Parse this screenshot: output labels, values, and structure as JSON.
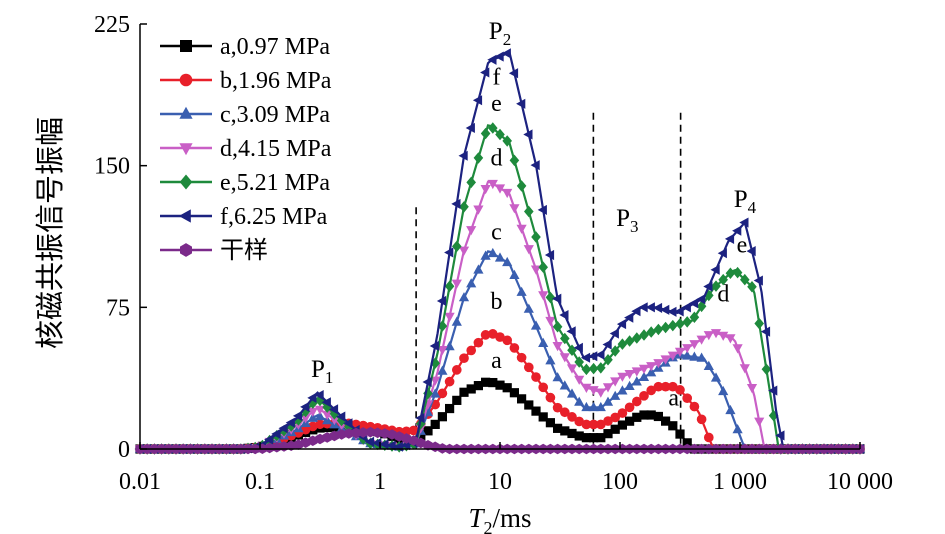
{
  "chart_data": {
    "type": "line",
    "xscale": "log",
    "xlim": [
      0.01,
      10000
    ],
    "ylim": [
      0,
      225
    ],
    "x_ticks": [
      "0.01",
      "0.1",
      "1",
      "10",
      "100",
      "1 000",
      "10 000"
    ],
    "y_ticks": [
      "0",
      "75",
      "150",
      "225"
    ],
    "xlabel": {
      "symbol": "T",
      "sub": "2",
      "unit": "/ms"
    },
    "ylabel": "核磁共振信号振幅",
    "legend_position": "top-left",
    "dividers_x": [
      2,
      60,
      320
    ],
    "peak_labels": [
      {
        "base": "P",
        "sub": "1",
        "x": 0.33,
        "y": 38
      },
      {
        "base": "P",
        "sub": "2",
        "x": 10,
        "y": 217
      },
      {
        "base": "P",
        "sub": "3",
        "x": 115,
        "y": 118
      },
      {
        "base": "P",
        "sub": "4",
        "x": 1100,
        "y": 128
      }
    ],
    "curve_labels": [
      {
        "text": "a",
        "x": 9,
        "y": 43
      },
      {
        "text": "b",
        "x": 9,
        "y": 74
      },
      {
        "text": "c",
        "x": 9,
        "y": 111
      },
      {
        "text": "d",
        "x": 9,
        "y": 150
      },
      {
        "text": "e",
        "x": 9,
        "y": 179
      },
      {
        "text": "f",
        "x": 9,
        "y": 193
      },
      {
        "text": "a",
        "x": 270,
        "y": 23
      },
      {
        "text": "d",
        "x": 700,
        "y": 78
      },
      {
        "text": "e",
        "x": 1000,
        "y": 104
      }
    ],
    "series": [
      {
        "name": "a,0.97 MPa",
        "color": "#000000",
        "marker": "square",
        "x": [
          0.01,
          0.07,
          0.1,
          0.2,
          0.3,
          0.5,
          1,
          1.5,
          2,
          3,
          5,
          8,
          12,
          20,
          30,
          50,
          70,
          100,
          150,
          200,
          280,
          400,
          10000
        ],
        "y": [
          0,
          0,
          1,
          7,
          11,
          12,
          9,
          5,
          4,
          14,
          30,
          36,
          32,
          20,
          11,
          6,
          6,
          12,
          18,
          18,
          12,
          0,
          0
        ]
      },
      {
        "name": "b,1.96 MPa",
        "color": "#e8202a",
        "marker": "circle",
        "x": [
          0.01,
          0.07,
          0.1,
          0.2,
          0.3,
          0.5,
          1,
          1.5,
          2,
          3,
          5,
          8,
          12,
          20,
          30,
          50,
          70,
          100,
          150,
          200,
          300,
          450,
          600,
          10000
        ],
        "y": [
          0,
          0,
          1,
          8,
          13,
          14,
          11,
          9,
          10,
          25,
          48,
          62,
          57,
          38,
          22,
          13,
          13,
          18,
          27,
          33,
          33,
          20,
          0,
          0
        ]
      },
      {
        "name": "c,3.09 MPa",
        "color": "#3a5fb0",
        "marker": "triangle-up",
        "x": [
          0.01,
          0.07,
          0.1,
          0.2,
          0.3,
          0.5,
          0.8,
          1.5,
          2,
          3,
          5,
          8,
          12,
          20,
          30,
          50,
          70,
          100,
          200,
          300,
          500,
          700,
          1100,
          10000
        ],
        "y": [
          0,
          0,
          1,
          10,
          18,
          10,
          3,
          1,
          3,
          32,
          80,
          105,
          98,
          65,
          38,
          22,
          22,
          30,
          42,
          50,
          48,
          33,
          0,
          0
        ]
      },
      {
        "name": "d,4.15 MPa",
        "color": "#c95fc6",
        "marker": "triangle-down",
        "x": [
          0.01,
          0.07,
          0.1,
          0.2,
          0.3,
          0.5,
          0.8,
          1.5,
          2,
          3,
          5,
          8,
          12,
          20,
          30,
          50,
          70,
          100,
          200,
          400,
          600,
          900,
          1300,
          1600,
          10000
        ],
        "y": [
          0,
          0,
          1,
          12,
          22,
          12,
          3,
          1,
          3,
          40,
          105,
          142,
          135,
          95,
          55,
          33,
          30,
          38,
          45,
          55,
          62,
          58,
          30,
          0,
          0
        ]
      },
      {
        "name": "e,5.21 MPa",
        "color": "#1e8a3c",
        "marker": "diamond",
        "x": [
          0.01,
          0.07,
          0.1,
          0.2,
          0.3,
          0.5,
          0.8,
          1.5,
          2,
          3,
          5,
          8,
          12,
          20,
          30,
          50,
          70,
          100,
          200,
          400,
          600,
          900,
          1300,
          1800,
          2100,
          10000
        ],
        "y": [
          0,
          0,
          1,
          14,
          27,
          14,
          3,
          1,
          3,
          50,
          128,
          172,
          162,
          112,
          65,
          42,
          43,
          55,
          63,
          68,
          85,
          95,
          85,
          28,
          0,
          0
        ]
      },
      {
        "name": "f,6.25 MPa",
        "color": "#1c2280",
        "marker": "triangle-left",
        "x": [
          0.01,
          0.07,
          0.1,
          0.2,
          0.3,
          0.5,
          0.8,
          1.5,
          2,
          3,
          5,
          8,
          12,
          20,
          30,
          50,
          70,
          100,
          150,
          200,
          300,
          500,
          800,
          1100,
          1500,
          2000,
          2300,
          10000
        ],
        "y": [
          0,
          0,
          1,
          16,
          30,
          16,
          4,
          1,
          4,
          60,
          155,
          205,
          210,
          150,
          80,
          48,
          50,
          65,
          75,
          75,
          72,
          80,
          110,
          120,
          85,
          20,
          0,
          0
        ]
      },
      {
        "name": "干样",
        "color": "#7b2a8a",
        "marker": "hexagon",
        "x": [
          0.01,
          0.1,
          0.2,
          0.3,
          0.5,
          0.8,
          1.2,
          1.8,
          2.5,
          3.5,
          10000
        ],
        "y": [
          0,
          0,
          2,
          5,
          8,
          9,
          8,
          5,
          2,
          0,
          0
        ]
      }
    ]
  }
}
